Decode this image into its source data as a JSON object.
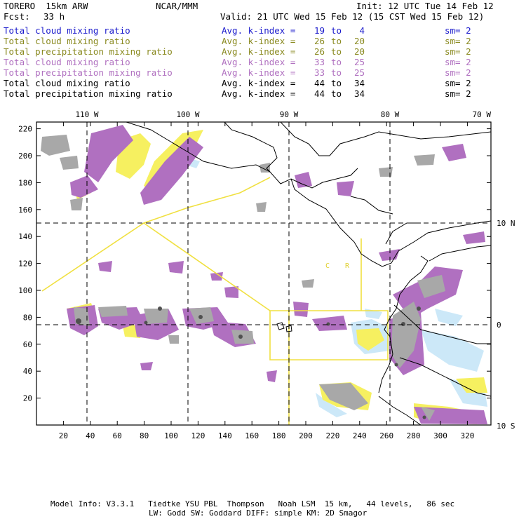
{
  "header": {
    "model": "TORERO  15km ARW",
    "org": "NCAR/MMM",
    "init": "Init: 12 UTC Tue 14 Feb 12",
    "fcst_label": "Fcst:",
    "fcst_value": "33 h",
    "valid": "Valid: 21 UTC Wed 15 Feb 12 (15 CST Wed 15 Feb 12)"
  },
  "fields": [
    {
      "name": "Total cloud mixing ratio",
      "k_label": "Avg. k-index =",
      "k_from": "19",
      "to": "to",
      "k_to": "4",
      "sm": "sm= 2",
      "color": "#1a1acc"
    },
    {
      "name": "Total cloud mixing ratio",
      "k_label": "Avg. k-index =",
      "k_from": "26",
      "to": "to",
      "k_to": "20",
      "sm": "sm= 2",
      "color": "#8a8a20"
    },
    {
      "name": "Total precipitation mixing ratio",
      "k_label": "Avg. k-index =",
      "k_from": "26",
      "to": "to",
      "k_to": "20",
      "sm": "sm= 2",
      "color": "#8a8a20"
    },
    {
      "name": "Total cloud mixing ratio",
      "k_label": "Avg. k-index =",
      "k_from": "33",
      "to": "to",
      "k_to": "25",
      "sm": "sm= 2",
      "color": "#b070c0"
    },
    {
      "name": "Total precipitation mixing ratio",
      "k_label": "Avg. k-index =",
      "k_from": "33",
      "to": "to",
      "k_to": "25",
      "sm": "sm= 2",
      "color": "#b070c0"
    },
    {
      "name": "Total cloud mixing ratio",
      "k_label": "Avg. k-index =",
      "k_from": "44",
      "to": "to",
      "k_to": "34",
      "sm": "sm= 2",
      "color": "#000000"
    },
    {
      "name": "Total precipitation mixing ratio",
      "k_label": "Avg. k-index =",
      "k_from": "44",
      "to": "to",
      "k_to": "34",
      "sm": "sm= 2",
      "color": "#000000"
    }
  ],
  "map": {
    "lon_labels": [
      "110 W",
      "100 W",
      "90 W",
      "80 W",
      "70 W"
    ],
    "lat_labels": [
      "10 N",
      "0",
      "10 S"
    ],
    "x_ticks": [
      "20",
      "40",
      "60",
      "80",
      "100",
      "120",
      "140",
      "160",
      "180",
      "200",
      "220",
      "240",
      "260",
      "280",
      "300",
      "320"
    ],
    "y_ticks": [
      "20",
      "40",
      "60",
      "80",
      "100",
      "120",
      "140",
      "160",
      "180",
      "200",
      "220"
    ],
    "domain_letters": [
      "C",
      "R"
    ],
    "colors": {
      "cloud_gray": "#a8a8a8",
      "cloud_purple": "#b070c0",
      "precip_yellow": "#f6f060",
      "precip_lightblue": "#cce8f8",
      "domain_outline": "#f0e040",
      "coast": "#000000"
    }
  },
  "footer": {
    "line1": "Model Info: V3.3.1   Tiedtke YSU PBL  Thompson   Noah LSM  15 km,   44 levels,   86 sec",
    "line2": "LW: Godd SW: Goddard DIFF: simple KM: 2D Smagor"
  }
}
